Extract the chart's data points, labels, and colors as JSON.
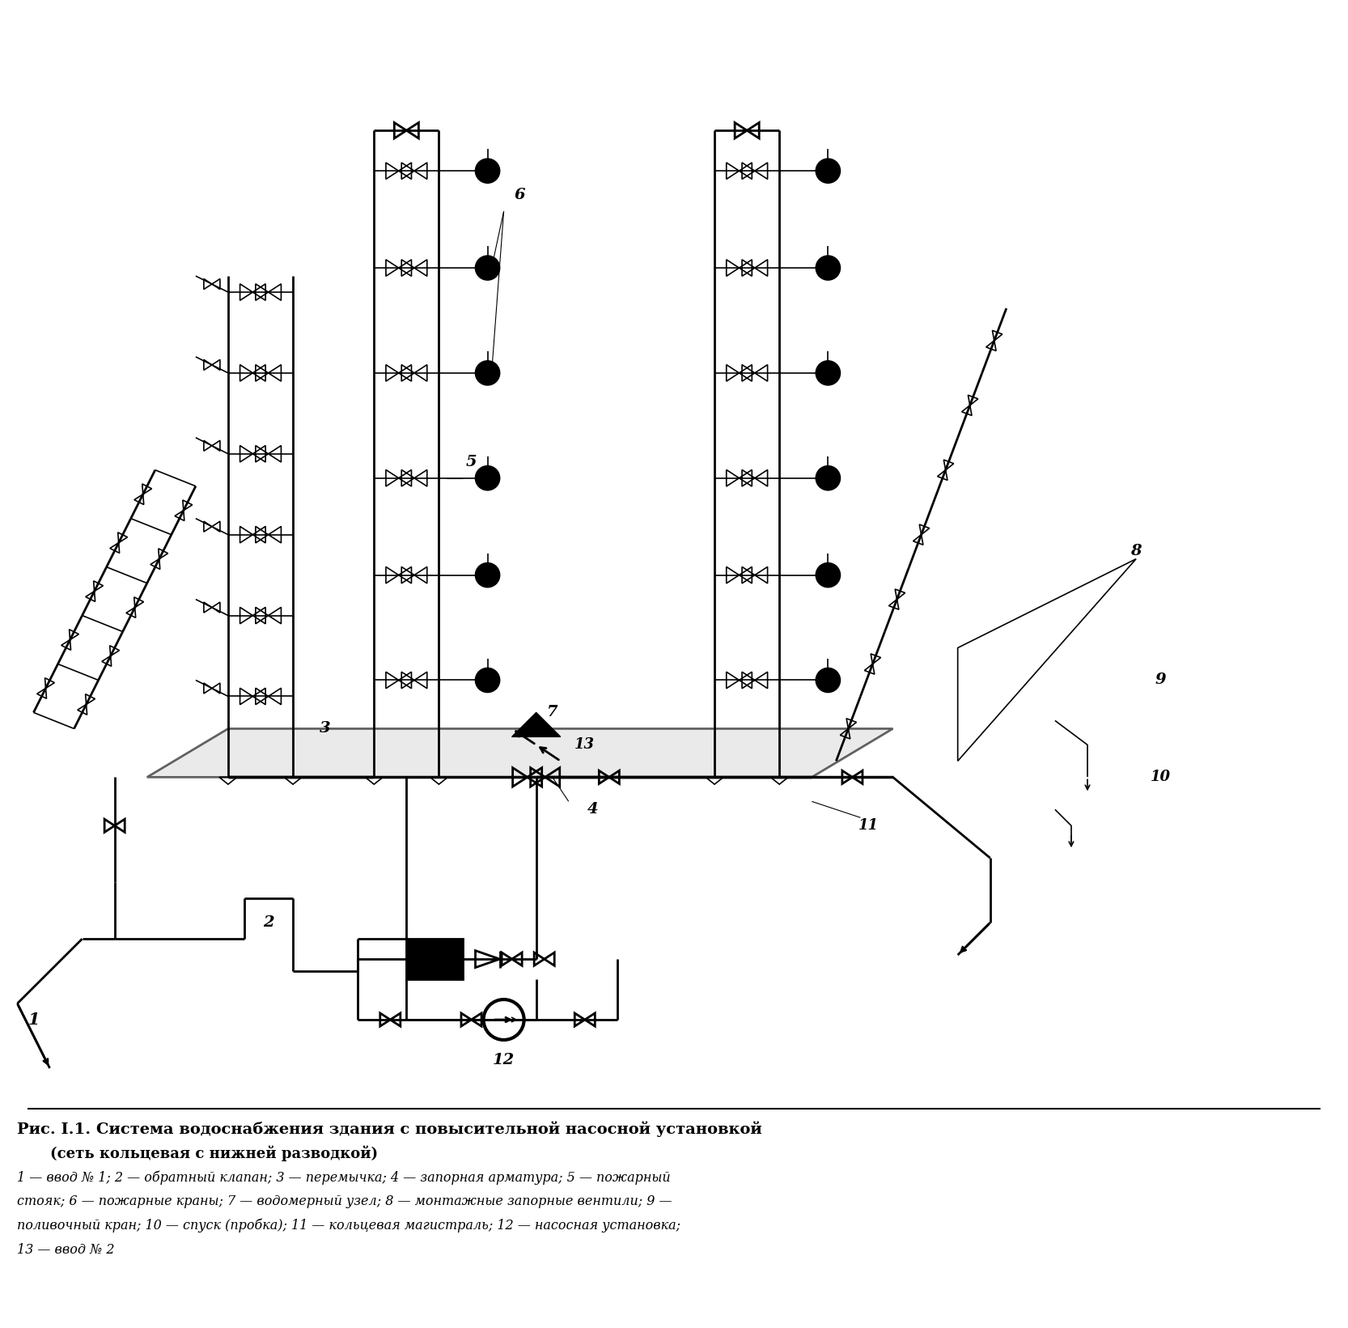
{
  "title": "Рис. I.1. Система водоснабжения здания с повысительной насосной установкой",
  "subtitle": "(сеть кольцевая с нижней разводкой)",
  "legend_line1": "1 — ввод № 1; 2 — обратный клапан; 3 — перемычка; 4 — запорная арматура; 5 — пожарный",
  "legend_line2": "стояк; 6 — пожарные краны; 7 — водомерный узел; 8 — монтажные запорные вентили; 9 —",
  "legend_line3": "поливочный кран; 10 — спуск (пробка); 11 — кольцевая магистраль; 12 — насосная установка;",
  "legend_line4": "13 — ввод № 2",
  "bg_color": "#ffffff",
  "lc": "#000000",
  "fig_width": 16.66,
  "fig_height": 16.41
}
